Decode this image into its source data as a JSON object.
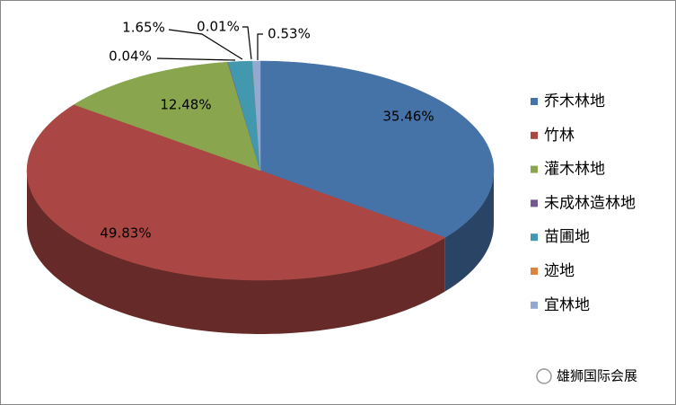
{
  "chart_data": {
    "type": "pie3d",
    "categories": [
      "乔木林地",
      "竹林",
      "灌木林地",
      "未成林造林地",
      "苗圃地",
      "迹地",
      "宜林地"
    ],
    "values": [
      35.46,
      49.83,
      12.48,
      0.04,
      1.65,
      0.01,
      0.53
    ],
    "value_labels": [
      "35.46%",
      "49.83%",
      "12.48%",
      "0.04%",
      "1.65%",
      "0.01%",
      "0.53%"
    ],
    "colors": [
      "#4572a7",
      "#aa4643",
      "#89a54e",
      "#71588f",
      "#4198af",
      "#db843d",
      "#93a9cf"
    ],
    "legend": "right",
    "watermark": "雄狮国际会展"
  }
}
